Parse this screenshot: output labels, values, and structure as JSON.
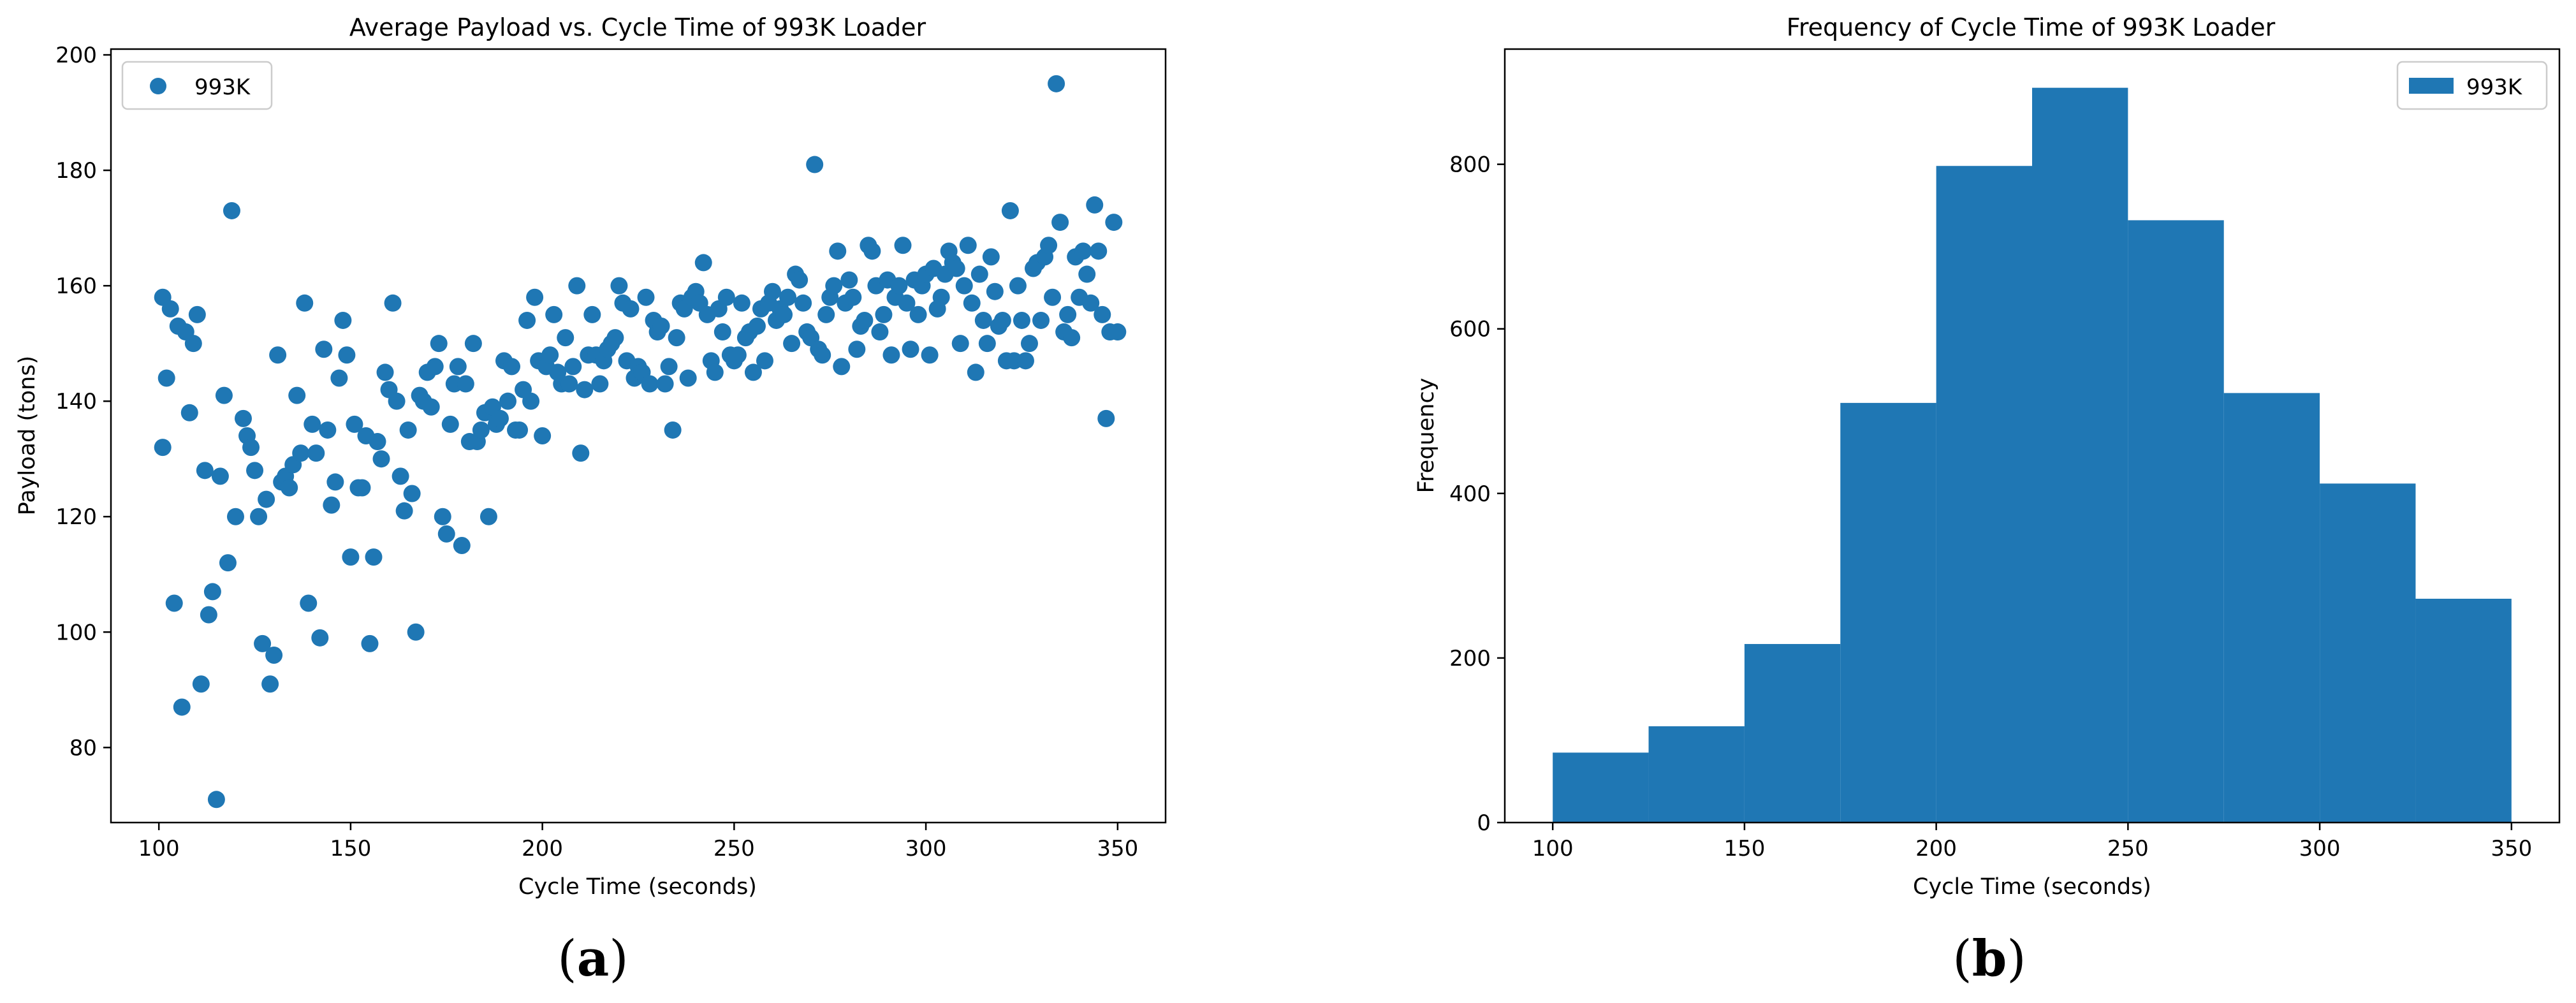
{
  "chart_data": [
    {
      "panel": "a",
      "type": "scatter",
      "title": "Average Payload vs. Cycle Time of 993K Loader",
      "xlabel": "Cycle Time (seconds)",
      "ylabel": "Payload (tons)",
      "xlim": [
        87.5,
        362.5
      ],
      "ylim": [
        67,
        201
      ],
      "xticks": [
        100,
        150,
        200,
        250,
        300,
        350
      ],
      "yticks": [
        80,
        100,
        120,
        140,
        160,
        180,
        200
      ],
      "legend_position": "upper left",
      "series": [
        {
          "name": "993K",
          "color": "#1f77b4",
          "points": [
            [
              101,
              158
            ],
            [
              101,
              132
            ],
            [
              102,
              144
            ],
            [
              103,
              156
            ],
            [
              104,
              105
            ],
            [
              105,
              153
            ],
            [
              106,
              87
            ],
            [
              107,
              152
            ],
            [
              108,
              138
            ],
            [
              109,
              150
            ],
            [
              110,
              155
            ],
            [
              111,
              91
            ],
            [
              112,
              128
            ],
            [
              113,
              103
            ],
            [
              114,
              107
            ],
            [
              115,
              71
            ],
            [
              116,
              127
            ],
            [
              117,
              141
            ],
            [
              118,
              112
            ],
            [
              119,
              173
            ],
            [
              120,
              120
            ],
            [
              122,
              137
            ],
            [
              123,
              134
            ],
            [
              124,
              132
            ],
            [
              125,
              128
            ],
            [
              126,
              120
            ],
            [
              127,
              98
            ],
            [
              128,
              123
            ],
            [
              129,
              91
            ],
            [
              130,
              96
            ],
            [
              131,
              148
            ],
            [
              132,
              126
            ],
            [
              133,
              127
            ],
            [
              134,
              125
            ],
            [
              135,
              129
            ],
            [
              136,
              141
            ],
            [
              137,
              131
            ],
            [
              138,
              157
            ],
            [
              139,
              105
            ],
            [
              140,
              136
            ],
            [
              141,
              131
            ],
            [
              142,
              99
            ],
            [
              143,
              149
            ],
            [
              144,
              135
            ],
            [
              145,
              122
            ],
            [
              146,
              126
            ],
            [
              147,
              144
            ],
            [
              148,
              154
            ],
            [
              149,
              148
            ],
            [
              150,
              113
            ],
            [
              151,
              136
            ],
            [
              152,
              125
            ],
            [
              153,
              125
            ],
            [
              154,
              134
            ],
            [
              155,
              98
            ],
            [
              156,
              113
            ],
            [
              157,
              133
            ],
            [
              158,
              130
            ],
            [
              159,
              145
            ],
            [
              160,
              142
            ],
            [
              161,
              157
            ],
            [
              162,
              140
            ],
            [
              163,
              127
            ],
            [
              164,
              121
            ],
            [
              165,
              135
            ],
            [
              166,
              124
            ],
            [
              167,
              100
            ],
            [
              168,
              141
            ],
            [
              169,
              140
            ],
            [
              170,
              145
            ],
            [
              171,
              139
            ],
            [
              172,
              146
            ],
            [
              173,
              150
            ],
            [
              174,
              120
            ],
            [
              175,
              117
            ],
            [
              176,
              136
            ],
            [
              177,
              143
            ],
            [
              178,
              146
            ],
            [
              179,
              115
            ],
            [
              180,
              143
            ],
            [
              181,
              133
            ],
            [
              182,
              150
            ],
            [
              183,
              133
            ],
            [
              184,
              135
            ],
            [
              185,
              138
            ],
            [
              186,
              120
            ],
            [
              187,
              139
            ],
            [
              188,
              136
            ],
            [
              189,
              137
            ],
            [
              190,
              147
            ],
            [
              191,
              140
            ],
            [
              192,
              146
            ],
            [
              193,
              135
            ],
            [
              194,
              135
            ],
            [
              195,
              142
            ],
            [
              196,
              154
            ],
            [
              197,
              140
            ],
            [
              198,
              158
            ],
            [
              199,
              147
            ],
            [
              200,
              134
            ],
            [
              201,
              146
            ],
            [
              202,
              148
            ],
            [
              203,
              155
            ],
            [
              204,
              145
            ],
            [
              205,
              143
            ],
            [
              206,
              151
            ],
            [
              207,
              143
            ],
            [
              208,
              146
            ],
            [
              209,
              160
            ],
            [
              210,
              131
            ],
            [
              211,
              142
            ],
            [
              212,
              148
            ],
            [
              213,
              155
            ],
            [
              214,
              148
            ],
            [
              215,
              143
            ],
            [
              216,
              147
            ],
            [
              217,
              149
            ],
            [
              218,
              150
            ],
            [
              219,
              151
            ],
            [
              220,
              160
            ],
            [
              221,
              157
            ],
            [
              222,
              147
            ],
            [
              223,
              156
            ],
            [
              224,
              144
            ],
            [
              225,
              146
            ],
            [
              226,
              145
            ],
            [
              227,
              158
            ],
            [
              228,
              143
            ],
            [
              229,
              154
            ],
            [
              230,
              152
            ],
            [
              231,
              153
            ],
            [
              232,
              143
            ],
            [
              233,
              146
            ],
            [
              234,
              135
            ],
            [
              235,
              151
            ],
            [
              236,
              157
            ],
            [
              237,
              156
            ],
            [
              238,
              144
            ],
            [
              239,
              158
            ],
            [
              240,
              159
            ],
            [
              241,
              157
            ],
            [
              242,
              164
            ],
            [
              243,
              155
            ],
            [
              244,
              147
            ],
            [
              245,
              145
            ],
            [
              246,
              156
            ],
            [
              247,
              152
            ],
            [
              248,
              158
            ],
            [
              249,
              148
            ],
            [
              250,
              147
            ],
            [
              251,
              148
            ],
            [
              252,
              157
            ],
            [
              253,
              151
            ],
            [
              254,
              152
            ],
            [
              255,
              145
            ],
            [
              256,
              153
            ],
            [
              257,
              156
            ],
            [
              258,
              147
            ],
            [
              259,
              157
            ],
            [
              260,
              159
            ],
            [
              261,
              154
            ],
            [
              262,
              156
            ],
            [
              263,
              155
            ],
            [
              264,
              158
            ],
            [
              265,
              150
            ],
            [
              266,
              162
            ],
            [
              267,
              161
            ],
            [
              268,
              157
            ],
            [
              269,
              152
            ],
            [
              270,
              151
            ],
            [
              271,
              181
            ],
            [
              272,
              149
            ],
            [
              273,
              148
            ],
            [
              274,
              155
            ],
            [
              275,
              158
            ],
            [
              276,
              160
            ],
            [
              277,
              166
            ],
            [
              278,
              146
            ],
            [
              279,
              157
            ],
            [
              280,
              161
            ],
            [
              281,
              158
            ],
            [
              282,
              149
            ],
            [
              283,
              153
            ],
            [
              284,
              154
            ],
            [
              285,
              167
            ],
            [
              286,
              166
            ],
            [
              287,
              160
            ],
            [
              288,
              152
            ],
            [
              289,
              155
            ],
            [
              290,
              161
            ],
            [
              291,
              148
            ],
            [
              292,
              158
            ],
            [
              293,
              160
            ],
            [
              294,
              167
            ],
            [
              295,
              157
            ],
            [
              296,
              149
            ],
            [
              297,
              161
            ],
            [
              298,
              155
            ],
            [
              299,
              160
            ],
            [
              300,
              162
            ],
            [
              301,
              148
            ],
            [
              302,
              163
            ],
            [
              303,
              156
            ],
            [
              304,
              158
            ],
            [
              305,
              162
            ],
            [
              306,
              166
            ],
            [
              307,
              164
            ],
            [
              308,
              163
            ],
            [
              309,
              150
            ],
            [
              310,
              160
            ],
            [
              311,
              167
            ],
            [
              312,
              157
            ],
            [
              313,
              145
            ],
            [
              314,
              162
            ],
            [
              315,
              154
            ],
            [
              316,
              150
            ],
            [
              317,
              165
            ],
            [
              318,
              159
            ],
            [
              319,
              153
            ],
            [
              320,
              154
            ],
            [
              321,
              147
            ],
            [
              322,
              173
            ],
            [
              323,
              147
            ],
            [
              324,
              160
            ],
            [
              325,
              154
            ],
            [
              326,
              147
            ],
            [
              327,
              150
            ],
            [
              328,
              163
            ],
            [
              329,
              164
            ],
            [
              330,
              154
            ],
            [
              331,
              165
            ],
            [
              332,
              167
            ],
            [
              333,
              158
            ],
            [
              334,
              195
            ],
            [
              335,
              171
            ],
            [
              336,
              152
            ],
            [
              337,
              155
            ],
            [
              338,
              151
            ],
            [
              339,
              165
            ],
            [
              340,
              158
            ],
            [
              341,
              166
            ],
            [
              342,
              162
            ],
            [
              343,
              157
            ],
            [
              344,
              174
            ],
            [
              345,
              166
            ],
            [
              346,
              155
            ],
            [
              347,
              137
            ],
            [
              348,
              152
            ],
            [
              349,
              171
            ],
            [
              350,
              152
            ]
          ]
        }
      ]
    },
    {
      "panel": "b",
      "type": "bar",
      "subtype": "histogram",
      "title": "Frequency of Cycle Time of 993K Loader",
      "xlabel": "Cycle Time (seconds)",
      "ylabel": "Frequency",
      "xlim": [
        87.5,
        362.5
      ],
      "ylim": [
        0,
        940
      ],
      "xticks": [
        100,
        150,
        200,
        250,
        300,
        350
      ],
      "yticks": [
        0,
        200,
        400,
        600,
        800
      ],
      "legend_position": "upper right",
      "bin_edges": [
        100,
        125,
        150,
        175,
        200,
        225,
        250,
        275,
        300,
        325,
        350
      ],
      "series": [
        {
          "name": "993K",
          "color": "#1f77b4",
          "values": [
            85,
            117,
            217,
            510,
            798,
            893,
            732,
            522,
            412,
            272
          ]
        }
      ]
    }
  ],
  "captions": {
    "a": {
      "open": "(",
      "letter": "a",
      "close": ")"
    },
    "b": {
      "open": "(",
      "letter": "b",
      "close": ")"
    }
  }
}
